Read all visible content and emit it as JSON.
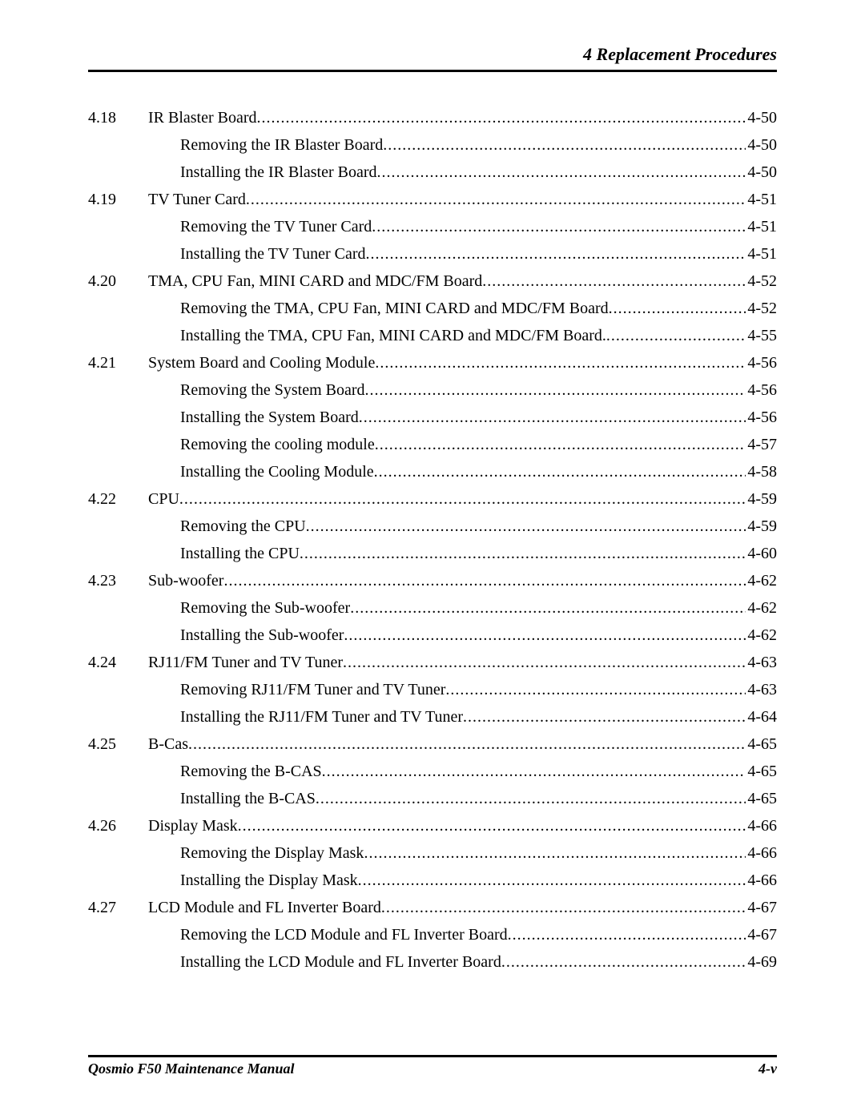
{
  "header": "4 Replacement Procedures",
  "footer_left": "Qosmio F50  Maintenance Manual",
  "footer_right": "4-v",
  "colors": {
    "text": "#000000",
    "background": "#ffffff",
    "rule": "#000000"
  },
  "typography": {
    "body_family": "Times New Roman",
    "body_size_pt": 15,
    "header_size_pt": 16
  },
  "entries": [
    {
      "num": "4.18",
      "title": "IR Blaster Board",
      "page": "4-50",
      "level": 1
    },
    {
      "num": "",
      "title": "Removing the IR Blaster Board",
      "page": "4-50",
      "level": 2
    },
    {
      "num": "",
      "title": "Installing the IR Blaster Board",
      "page": "4-50",
      "level": 2
    },
    {
      "num": "4.19",
      "title": "TV Tuner Card",
      "page": "4-51",
      "level": 1
    },
    {
      "num": "",
      "title": "Removing the TV Tuner Card",
      "page": "4-51",
      "level": 2
    },
    {
      "num": "",
      "title": "Installing the TV Tuner Card",
      "page": "4-51",
      "level": 2
    },
    {
      "num": "4.20",
      "title": "TMA, CPU Fan, MINI CARD and MDC/FM Board",
      "page": "4-52",
      "level": 1
    },
    {
      "num": "",
      "title": "Removing the TMA, CPU Fan, MINI CARD and MDC/FM Board",
      "page": "4-52",
      "level": 2,
      "noleader": true
    },
    {
      "num": "",
      "title": "Installing the TMA, CPU Fan, MINI CARD and MDC/FM Board.",
      "page": "4-55",
      "level": 2,
      "noleader": true
    },
    {
      "num": "4.21",
      "title": "System Board and Cooling Module",
      "page": "4-56",
      "level": 1
    },
    {
      "num": "",
      "title": "Removing the System Board",
      "page": "4-56",
      "level": 2
    },
    {
      "num": "",
      "title": "Installing the System Board",
      "page": "4-56",
      "level": 2
    },
    {
      "num": "",
      "title": "Removing the cooling module",
      "page": "4-57",
      "level": 2
    },
    {
      "num": "",
      "title": "Installing the Cooling Module",
      "page": "4-58",
      "level": 2
    },
    {
      "num": "4.22",
      "title": "CPU",
      "page": "4-59",
      "level": 1
    },
    {
      "num": "",
      "title": "Removing the CPU",
      "page": "4-59",
      "level": 2
    },
    {
      "num": "",
      "title": "Installing the CPU",
      "page": "4-60",
      "level": 2
    },
    {
      "num": "4.23",
      "title": "Sub-woofer",
      "page": "4-62",
      "level": 1
    },
    {
      "num": "",
      "title": "Removing the Sub-woofer",
      "page": "4-62",
      "level": 2
    },
    {
      "num": "",
      "title": "Installing the Sub-woofer",
      "page": "4-62",
      "level": 2
    },
    {
      "num": "4.24",
      "title": "RJ11/FM Tuner and TV Tuner",
      "page": "4-63",
      "level": 1
    },
    {
      "num": "",
      "title": "Removing RJ11/FM Tuner and TV Tuner",
      "page": "4-63",
      "level": 2
    },
    {
      "num": "",
      "title": "Installing the RJ11/FM Tuner and TV Tuner",
      "page": "4-64",
      "level": 2
    },
    {
      "num": "4.25",
      "title": "B-Cas",
      "page": "4-65",
      "level": 1
    },
    {
      "num": "",
      "title": "Removing the B-CAS",
      "page": "4-65",
      "level": 2
    },
    {
      "num": "",
      "title": "Installing the B-CAS",
      "page": "4-65",
      "level": 2
    },
    {
      "num": "4.26",
      "title": "Display Mask",
      "page": "4-66",
      "level": 1
    },
    {
      "num": "",
      "title": "Removing the Display Mask",
      "page": "4-66",
      "level": 2
    },
    {
      "num": "",
      "title": "Installing the Display Mask",
      "page": "4-66",
      "level": 2
    },
    {
      "num": "4.27",
      "title": "LCD Module and FL Inverter Board",
      "page": "4-67",
      "level": 1
    },
    {
      "num": "",
      "title": "Removing the LCD Module and FL Inverter Board",
      "page": "4-67",
      "level": 2
    },
    {
      "num": "",
      "title": "Installing the LCD Module and FL Inverter Board",
      "page": "4-69",
      "level": 2
    }
  ]
}
